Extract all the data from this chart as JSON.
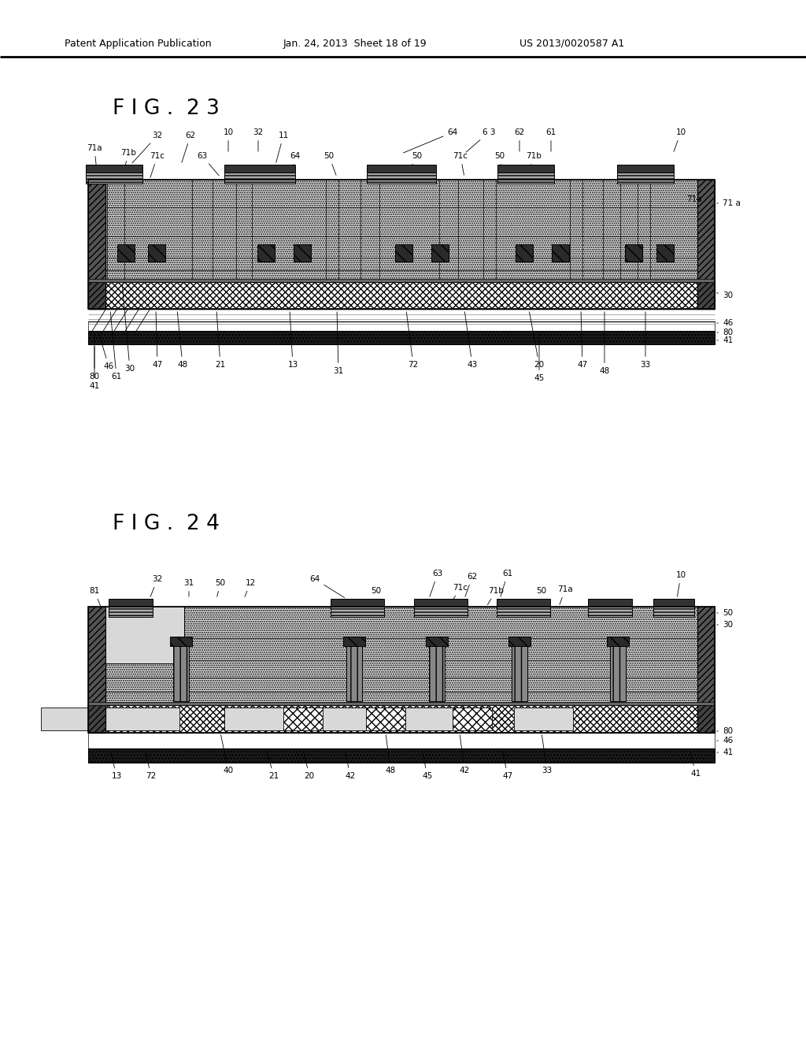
{
  "bg_color": "#ffffff",
  "lc": "#000000",
  "fig23_title": "F I G .  2 3",
  "fig24_title": "F I G .  2 4",
  "header_left": "Patent Application Publication",
  "header_mid": "Jan. 24, 2013  Sheet 18 of 19",
  "header_right": "US 2013/0020587 A1"
}
